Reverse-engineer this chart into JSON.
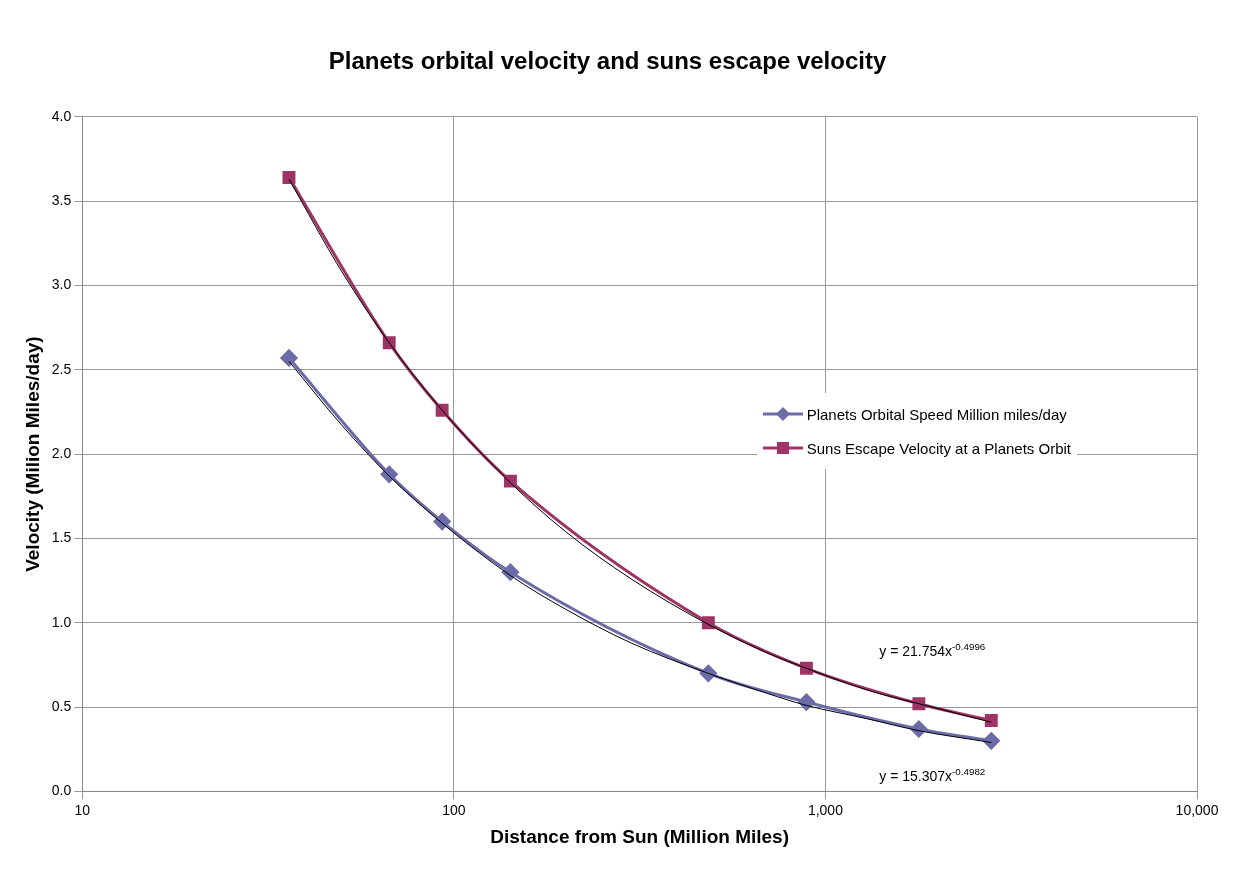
{
  "chart_data": {
    "type": "line",
    "title": "Planets orbital velocity and suns escape velocity",
    "xlabel": "Distance from Sun (Million Miles)",
    "ylabel": "Velocity (Milion Miles/day)",
    "x": [
      36,
      67,
      93,
      142,
      484,
      889,
      1784,
      2795
    ],
    "series": [
      {
        "name": "Planets Orbital Speed Million miles/day",
        "color": "#6b6ba8",
        "marker": "diamond",
        "values": [
          2.57,
          1.88,
          1.6,
          1.3,
          0.7,
          0.53,
          0.37,
          0.3
        ]
      },
      {
        "name": "Suns Escape Velocity at a Planets Orbit",
        "color": "#9e3466",
        "marker": "square",
        "values": [
          3.64,
          2.66,
          2.26,
          1.84,
          1.0,
          0.73,
          0.52,
          0.42
        ]
      },
      {
        "color": "#000000",
        "marker": "none",
        "x": [
          36,
          50,
          67,
          93,
          142,
          200,
          300,
          484,
          700,
          889,
          1300,
          1784,
          2795
        ],
        "values": [
          3.63,
          3.08,
          2.66,
          2.26,
          1.83,
          1.54,
          1.26,
          0.99,
          0.82,
          0.73,
          0.6,
          0.52,
          0.41
        ]
      },
      {
        "color": "#000000",
        "marker": "none",
        "x": [
          36,
          50,
          67,
          93,
          142,
          200,
          300,
          484,
          700,
          889,
          1300,
          1784,
          2795
        ],
        "values": [
          2.55,
          2.17,
          1.87,
          1.59,
          1.28,
          1.08,
          0.88,
          0.7,
          0.58,
          0.51,
          0.43,
          0.36,
          0.29
        ]
      }
    ],
    "annotations": [
      "y = 21.754x$^{-0.4996}$",
      "y = 15.307x$^{-0.4982}$"
    ],
    "log": "x",
    "xlim": [
      10,
      10000
    ],
    "xticks": [
      10,
      100,
      {
        "value": 1000,
        "label": "1,000"
      },
      {
        "value": 10000,
        "label": "10,000"
      }
    ],
    "ylim": [
      0,
      4
    ],
    "yticks": [
      {
        "value": 0,
        "label": "0.0"
      },
      {
        "value": 0.5,
        "label": "0.5"
      },
      {
        "value": 1,
        "label": "1.0"
      },
      {
        "value": 1.5,
        "label": "1.5"
      },
      {
        "value": 2,
        "label": "2.0"
      },
      {
        "value": 2.5,
        "label": "2.5"
      },
      {
        "value": 3,
        "label": "3.0"
      },
      {
        "value": 3.5,
        "label": "3.5"
      },
      {
        "value": 4,
        "label": "4.0"
      }
    ],
    "grid": true,
    "legend": "right"
  }
}
